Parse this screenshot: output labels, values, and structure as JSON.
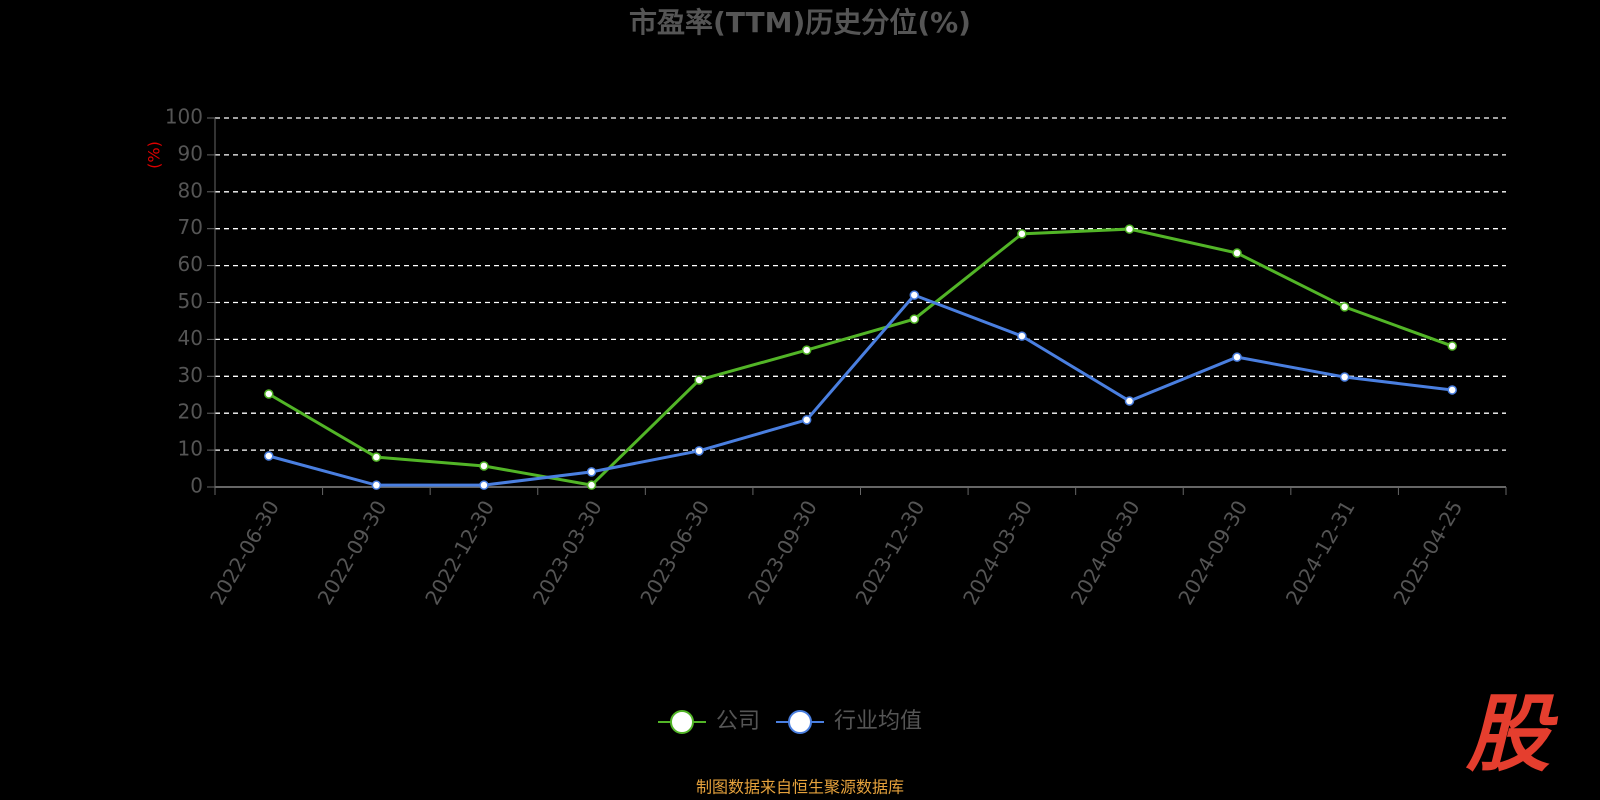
{
  "chart_data": {
    "type": "line",
    "title": "市盈率(TTM)历史分位(%)",
    "y_label": "(%)",
    "categories": [
      "2022-06-30",
      "2022-09-30",
      "2022-12-30",
      "2023-03-30",
      "2023-06-30",
      "2023-09-30",
      "2023-12-30",
      "2024-03-30",
      "2024-06-30",
      "2024-09-30",
      "2024-12-31",
      "2025-04-25"
    ],
    "series": [
      {
        "name": "公司",
        "color": "#52b527",
        "values": [
          25.2,
          8.1,
          5.7,
          0.5,
          29.0,
          37.1,
          45.5,
          68.6,
          69.9,
          63.4,
          48.8,
          38.2
        ]
      },
      {
        "name": "行业均值",
        "color": "#4a7fe0",
        "values": [
          8.4,
          0.5,
          0.5,
          4.1,
          9.8,
          18.2,
          52.0,
          40.9,
          23.3,
          35.2,
          29.8,
          26.3
        ]
      }
    ],
    "ylim": [
      0,
      100
    ],
    "yticks": [
      0,
      10,
      20,
      30,
      40,
      50,
      60,
      70,
      80,
      90,
      100
    ],
    "grid": true,
    "legend": "bottom"
  },
  "footer": {
    "source": "制图数据来自恒生聚源数据库",
    "logo": "股"
  }
}
